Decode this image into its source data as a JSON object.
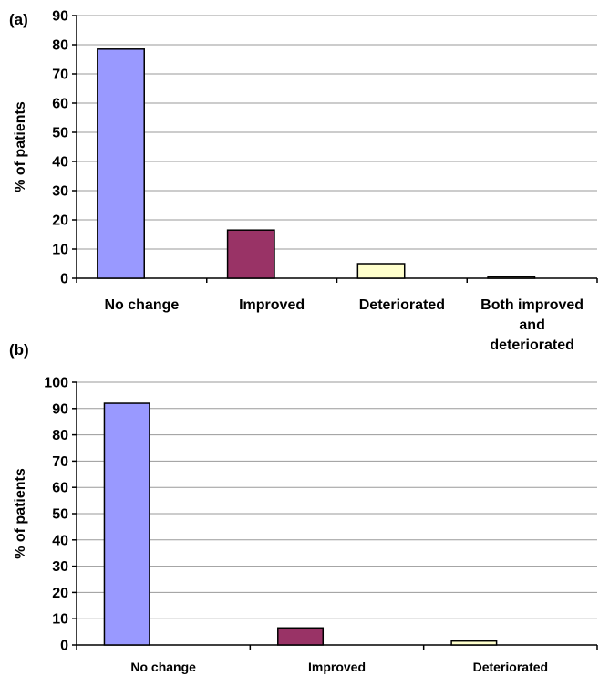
{
  "chart_data": [
    {
      "panel_label": "(a)",
      "type": "bar",
      "ylabel": "% of patients",
      "ylim": [
        0,
        90
      ],
      "yticks": [
        0,
        10,
        20,
        30,
        40,
        50,
        60,
        70,
        80,
        90
      ],
      "grid": true,
      "categories": [
        "No change",
        "Improved",
        "Deteriorated",
        "Both improved\nand\ndeteriorated"
      ],
      "values": [
        78.5,
        16.5,
        5.0,
        0.5
      ],
      "colors": [
        "#9999ff",
        "#993366",
        "#ffffcc",
        "#ffffcc"
      ]
    },
    {
      "panel_label": "(b)",
      "type": "bar",
      "ylabel": "% of patients",
      "ylim": [
        0,
        100
      ],
      "yticks": [
        0,
        10,
        20,
        30,
        40,
        50,
        60,
        70,
        80,
        90,
        100
      ],
      "grid": true,
      "categories": [
        "No change",
        "Improved",
        "Deteriorated"
      ],
      "values": [
        92,
        6.5,
        1.5
      ],
      "colors": [
        "#9999ff",
        "#993366",
        "#ffffcc"
      ]
    }
  ]
}
